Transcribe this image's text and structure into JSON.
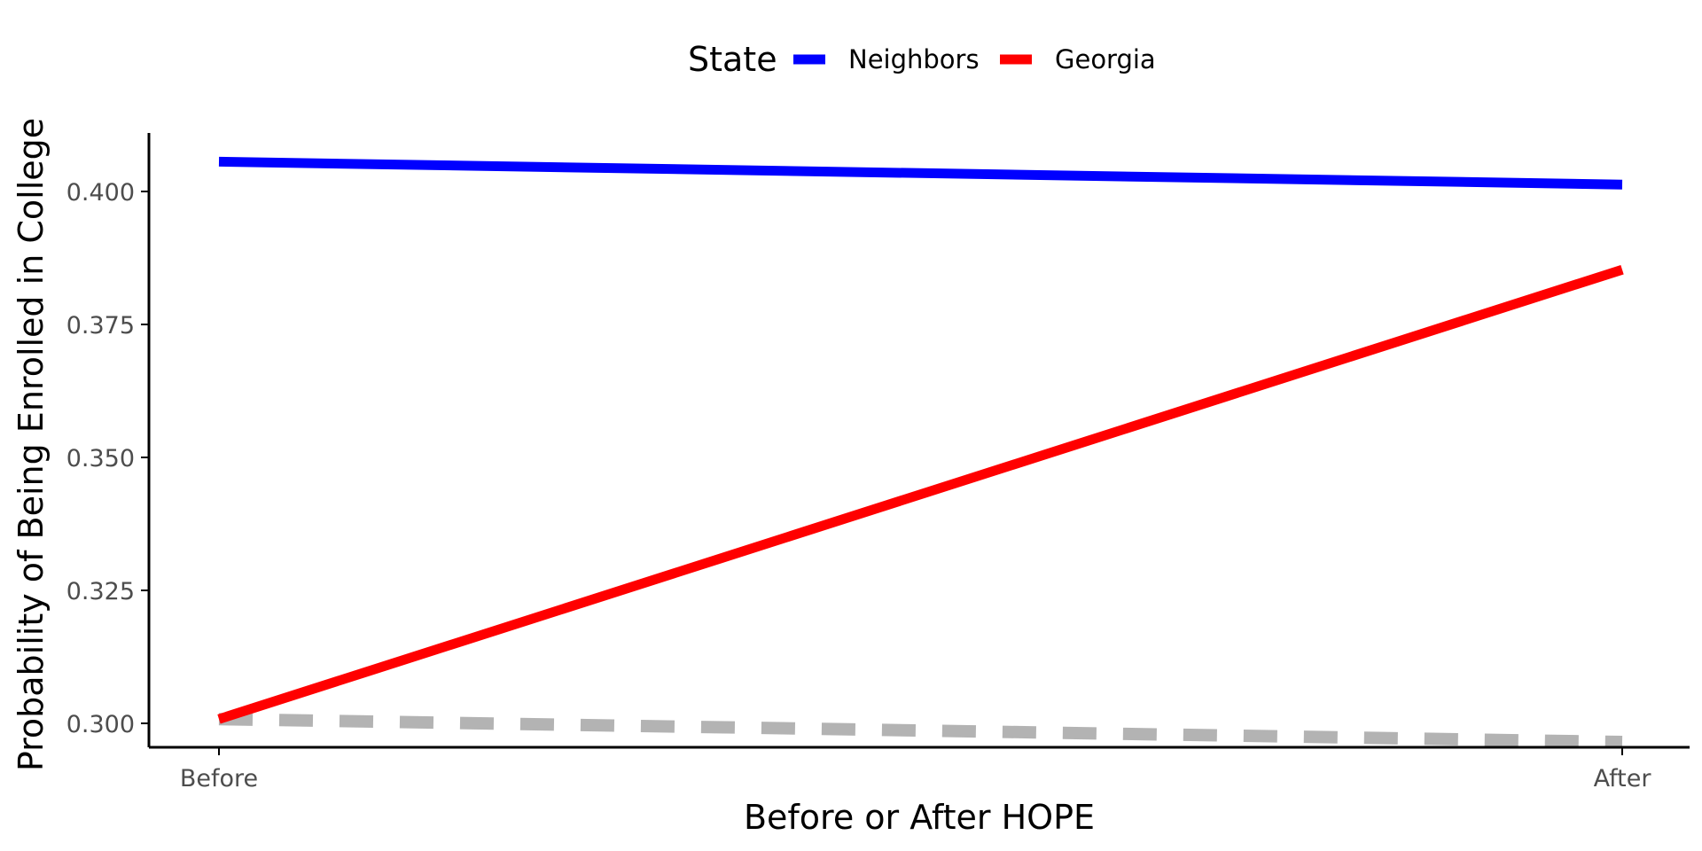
{
  "chart_data": {
    "type": "line",
    "xlabel": "Before or After HOPE",
    "ylabel": "Probability of Being Enrolled in College",
    "categories": [
      "Before",
      "After"
    ],
    "ylim": [
      0.2955,
      0.411
    ],
    "yticks": [
      0.3,
      0.325,
      0.35,
      0.375,
      0.4
    ],
    "ytick_labels": [
      "0.300",
      "0.325",
      "0.350",
      "0.375",
      "0.400"
    ],
    "grid": false,
    "legend": {
      "title": "State",
      "position": "top",
      "entries": [
        {
          "label": "Neighbors",
          "color": "#0000ff"
        },
        {
          "label": "Georgia",
          "color": "#ff0000"
        }
      ]
    },
    "series": [
      {
        "name": "Neighbors",
        "color": "#0000ff",
        "style": "solid",
        "values": [
          0.4056,
          0.4013
        ]
      },
      {
        "name": "Georgia",
        "color": "#ff0000",
        "style": "solid",
        "values": [
          0.3008,
          0.3853
        ]
      },
      {
        "color": "#b3b3b3",
        "style": "dashed",
        "values": [
          0.3008,
          0.2965
        ]
      }
    ]
  }
}
